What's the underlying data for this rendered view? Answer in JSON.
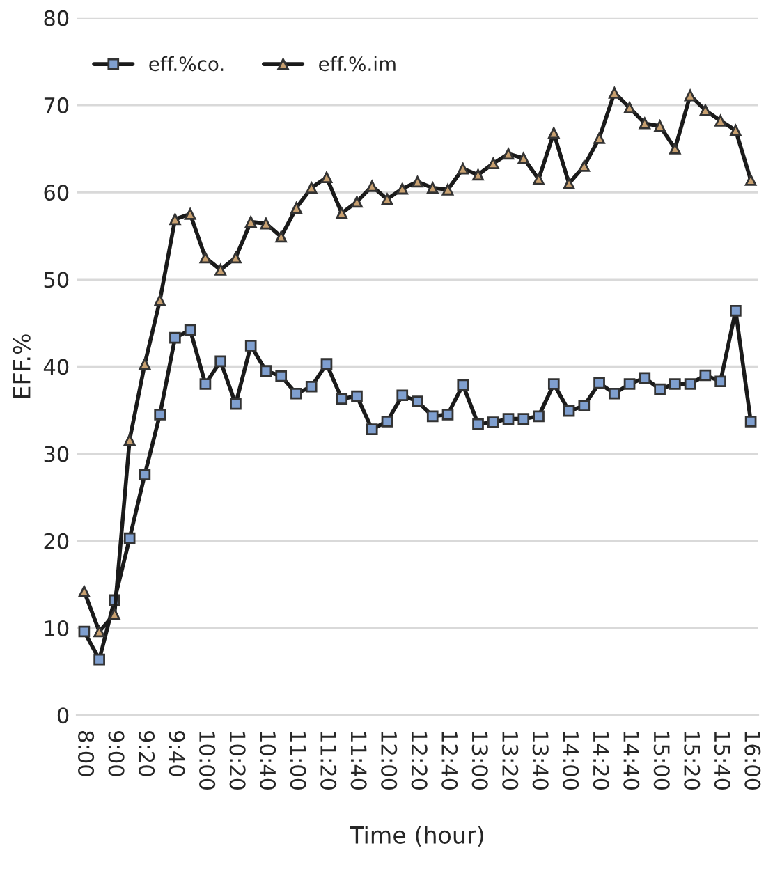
{
  "chart_data": {
    "type": "line",
    "categories": [
      "8:00",
      null,
      "9:00",
      null,
      "9:20",
      null,
      "9:40",
      null,
      "10:00",
      null,
      "10:20",
      null,
      "10:40",
      null,
      "11:00",
      null,
      "11:20",
      null,
      "11:40",
      null,
      "12:00",
      null,
      "12:20",
      null,
      "12:40",
      null,
      "13:00",
      null,
      "13:20",
      null,
      "13:40",
      null,
      "14:00",
      null,
      "14:20",
      null,
      "14:40",
      null,
      "15:00",
      null,
      "15:20",
      null,
      "15:40",
      null,
      "16:00"
    ],
    "series": [
      {
        "name": "eff.%co.",
        "color": "#7f9fcf",
        "marker": "square",
        "values": [
          9.6,
          6.4,
          13.2,
          20.3,
          27.6,
          34.5,
          43.3,
          44.2,
          38.0,
          40.6,
          35.7,
          42.4,
          39.5,
          38.9,
          36.9,
          37.7,
          40.3,
          36.3,
          36.6,
          32.8,
          33.7,
          36.7,
          36.0,
          34.3,
          34.5,
          37.9,
          33.4,
          33.6,
          34.0,
          34.0,
          34.3,
          38.0,
          34.9,
          35.5,
          38.1,
          36.9,
          38.0,
          38.7,
          37.4,
          38.0,
          38.0,
          39.0,
          38.3,
          46.4,
          33.7
        ]
      },
      {
        "name": "eff.%.im",
        "color": "#c8a070",
        "marker": "triangle",
        "values": [
          14.2,
          9.6,
          11.6,
          31.6,
          40.3,
          47.6,
          56.9,
          57.5,
          52.5,
          51.1,
          52.5,
          56.6,
          56.4,
          54.9,
          58.2,
          60.5,
          61.7,
          57.6,
          58.9,
          60.7,
          59.2,
          60.4,
          61.2,
          60.5,
          60.3,
          62.7,
          62.0,
          63.3,
          64.4,
          63.9,
          61.5,
          66.8,
          61.0,
          63.0,
          66.2,
          71.4,
          69.7,
          67.9,
          67.6,
          65.0,
          71.1,
          69.4,
          68.2,
          67.1,
          61.4
        ]
      }
    ],
    "xlabel": "Time (hour)",
    "ylabel": "EFF.%",
    "ylim": [
      0,
      80
    ],
    "yticks": [
      0,
      10,
      20,
      30,
      40,
      50,
      60,
      70,
      80
    ],
    "grid": "y",
    "legend": "top left",
    "line_style": "solid"
  }
}
